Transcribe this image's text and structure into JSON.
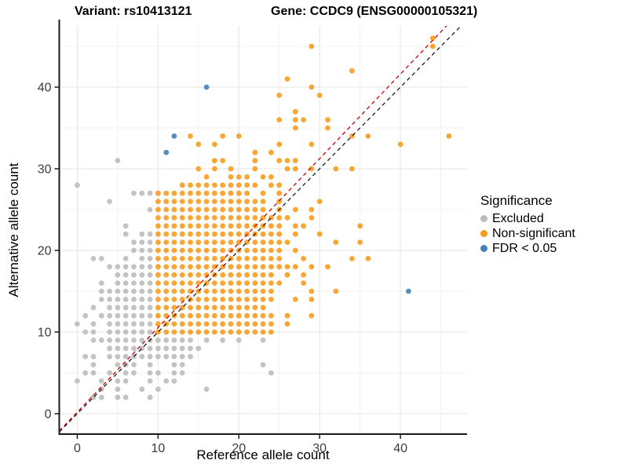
{
  "header": {
    "title_left": "Variant: rs10413121",
    "title_right": "Gene: CCDC9 (ENSG00000105321)"
  },
  "chart_data": {
    "type": "scatter",
    "xlabel": "Reference allele count",
    "ylabel": "Alternative allele count",
    "xlim": [
      -2.23,
      48.25
    ],
    "ylim": [
      -2.5,
      47.5
    ],
    "x_ticks": [
      0,
      10,
      20,
      30,
      40
    ],
    "y_ticks": [
      0,
      10,
      20,
      30,
      40
    ],
    "x_minor_ticks": [
      5,
      15,
      25,
      35,
      45
    ],
    "y_minor_ticks": [
      5,
      15,
      25,
      35,
      45
    ],
    "grid": {
      "on": true,
      "major_color": "#e4e4e4",
      "minor_color": "#f2f2f2"
    },
    "axis_color": "#1a1a1a",
    "tick_label_color": "#3c3c3c",
    "legend_title": "Significance",
    "legend_position": "right",
    "lines": [
      {
        "name": "identity-line",
        "slope": 1.0,
        "intercept": 0,
        "color": "#1a1a1a",
        "dash": "5,4"
      },
      {
        "name": "expected-ratio-line",
        "slope": 1.035,
        "intercept": 0.2,
        "color": "#cc0000",
        "dash": "5,4"
      }
    ],
    "point_radius": 3.4,
    "series": [
      {
        "name": "Excluded",
        "color": "#bcbcbc",
        "points": [
          [
            2,
            2
          ],
          [
            3,
            2
          ],
          [
            5,
            2
          ],
          [
            6,
            2
          ],
          [
            9,
            2
          ],
          [
            3,
            3
          ],
          [
            5,
            3
          ],
          [
            8,
            3
          ],
          [
            10,
            3
          ],
          [
            16,
            3
          ],
          [
            0,
            4
          ],
          [
            3,
            4
          ],
          [
            5,
            4
          ],
          [
            6,
            4
          ],
          [
            9,
            4
          ],
          [
            11,
            4
          ],
          [
            12,
            4
          ],
          [
            1,
            5
          ],
          [
            2,
            5
          ],
          [
            4,
            5
          ],
          [
            6,
            5
          ],
          [
            7,
            5
          ],
          [
            9,
            5
          ],
          [
            10,
            5
          ],
          [
            12,
            5
          ],
          [
            13,
            5
          ],
          [
            24,
            5
          ],
          [
            2,
            6
          ],
          [
            5,
            6
          ],
          [
            6,
            6
          ],
          [
            7,
            6
          ],
          [
            9,
            6
          ],
          [
            12,
            6
          ],
          [
            13,
            6
          ],
          [
            23,
            6
          ],
          [
            1,
            7
          ],
          [
            2,
            7
          ],
          [
            4,
            7
          ],
          [
            5,
            7
          ],
          [
            6,
            7
          ],
          [
            7,
            7
          ],
          [
            8,
            7
          ],
          [
            9,
            7
          ],
          [
            10,
            7
          ],
          [
            11,
            7
          ],
          [
            12,
            7
          ],
          [
            13,
            7
          ],
          [
            14,
            7
          ],
          [
            4,
            8
          ],
          [
            5,
            8
          ],
          [
            6,
            8
          ],
          [
            7,
            8
          ],
          [
            8,
            8
          ],
          [
            9,
            8
          ],
          [
            10,
            8
          ],
          [
            11,
            8
          ],
          [
            12,
            8
          ],
          [
            13,
            8
          ],
          [
            14,
            8
          ],
          [
            15,
            8
          ],
          [
            2,
            9
          ],
          [
            3,
            9
          ],
          [
            4,
            9
          ],
          [
            5,
            9
          ],
          [
            6,
            9
          ],
          [
            7,
            9
          ],
          [
            8,
            9
          ],
          [
            9,
            9
          ],
          [
            10,
            9
          ],
          [
            11,
            9
          ],
          [
            12,
            9
          ],
          [
            13,
            9
          ],
          [
            14,
            9
          ],
          [
            16,
            9
          ],
          [
            18,
            9
          ],
          [
            20,
            9
          ],
          [
            23,
            9
          ],
          [
            1,
            10
          ],
          [
            2,
            10
          ],
          [
            4,
            10
          ],
          [
            5,
            10
          ],
          [
            6,
            10
          ],
          [
            7,
            10
          ],
          [
            8,
            10
          ],
          [
            9,
            10
          ],
          [
            0,
            11
          ],
          [
            2,
            11
          ],
          [
            4,
            11
          ],
          [
            5,
            11
          ],
          [
            6,
            11
          ],
          [
            7,
            11
          ],
          [
            8,
            11
          ],
          [
            9,
            11
          ],
          [
            1,
            12
          ],
          [
            3,
            12
          ],
          [
            4,
            12
          ],
          [
            5,
            12
          ],
          [
            6,
            12
          ],
          [
            7,
            12
          ],
          [
            8,
            12
          ],
          [
            9,
            12
          ],
          [
            2,
            13
          ],
          [
            4,
            13
          ],
          [
            5,
            13
          ],
          [
            6,
            13
          ],
          [
            7,
            13
          ],
          [
            8,
            13
          ],
          [
            9,
            13
          ],
          [
            3,
            14
          ],
          [
            4,
            14
          ],
          [
            5,
            14
          ],
          [
            6,
            14
          ],
          [
            7,
            14
          ],
          [
            8,
            14
          ],
          [
            9,
            14
          ],
          [
            3,
            15
          ],
          [
            4,
            15
          ],
          [
            5,
            15
          ],
          [
            6,
            15
          ],
          [
            7,
            15
          ],
          [
            8,
            15
          ],
          [
            9,
            15
          ],
          [
            3,
            16
          ],
          [
            5,
            16
          ],
          [
            6,
            16
          ],
          [
            7,
            16
          ],
          [
            8,
            16
          ],
          [
            9,
            16
          ],
          [
            5,
            17
          ],
          [
            6,
            17
          ],
          [
            7,
            17
          ],
          [
            8,
            17
          ],
          [
            9,
            17
          ],
          [
            4,
            18
          ],
          [
            5,
            18
          ],
          [
            6,
            18
          ],
          [
            7,
            18
          ],
          [
            8,
            18
          ],
          [
            9,
            18
          ],
          [
            2,
            19
          ],
          [
            3,
            19
          ],
          [
            6,
            19
          ],
          [
            8,
            19
          ],
          [
            9,
            19
          ],
          [
            7,
            20
          ],
          [
            8,
            20
          ],
          [
            9,
            20
          ],
          [
            7,
            21
          ],
          [
            8,
            21
          ],
          [
            9,
            21
          ],
          [
            6,
            22
          ],
          [
            8,
            22
          ],
          [
            9,
            22
          ],
          [
            6,
            23
          ],
          [
            9,
            25
          ],
          [
            4,
            26
          ],
          [
            7,
            27
          ],
          [
            8,
            27
          ],
          [
            9,
            27
          ],
          [
            0,
            28
          ],
          [
            5,
            31
          ]
        ]
      },
      {
        "name": "Non-significant",
        "color": "#f89c1e",
        "row_runs": [
          {
            "y": 10,
            "from": 10,
            "to": 24
          },
          {
            "y": 11,
            "from": 10,
            "to": 24
          },
          {
            "y": 12,
            "from": 10,
            "to": 24
          },
          {
            "y": 13,
            "from": 10,
            "to": 23
          },
          {
            "y": 14,
            "from": 10,
            "to": 24
          },
          {
            "y": 15,
            "from": 10,
            "to": 24
          },
          {
            "y": 16,
            "from": 10,
            "to": 25
          },
          {
            "y": 17,
            "from": 10,
            "to": 24
          },
          {
            "y": 18,
            "from": 10,
            "to": 27
          },
          {
            "y": 19,
            "from": 10,
            "to": 25
          },
          {
            "y": 20,
            "from": 10,
            "to": 25
          },
          {
            "y": 21,
            "from": 10,
            "to": 26
          },
          {
            "y": 22,
            "from": 10,
            "to": 25
          },
          {
            "y": 23,
            "from": 10,
            "to": 25
          },
          {
            "y": 24,
            "from": 10,
            "to": 24
          },
          {
            "y": 25,
            "from": 10,
            "to": 23
          },
          {
            "y": 26,
            "from": 10,
            "to": 23
          },
          {
            "y": 27,
            "from": 10,
            "to": 21
          },
          {
            "y": 28,
            "from": 13,
            "to": 22
          }
        ],
        "points": [
          [
            26,
            11
          ],
          [
            26,
            12
          ],
          [
            29,
            12
          ],
          [
            27,
            14
          ],
          [
            29,
            14
          ],
          [
            29,
            15
          ],
          [
            32,
            15
          ],
          [
            28,
            16
          ],
          [
            26,
            17
          ],
          [
            28,
            17
          ],
          [
            29,
            18
          ],
          [
            31,
            18
          ],
          [
            28,
            19
          ],
          [
            34,
            19
          ],
          [
            36,
            19
          ],
          [
            27,
            20
          ],
          [
            32,
            21
          ],
          [
            35,
            21
          ],
          [
            27,
            22
          ],
          [
            30,
            22
          ],
          [
            27,
            23
          ],
          [
            28,
            23
          ],
          [
            35,
            23
          ],
          [
            25,
            24
          ],
          [
            26,
            24
          ],
          [
            29,
            24
          ],
          [
            25,
            25
          ],
          [
            27,
            25
          ],
          [
            29,
            25
          ],
          [
            25,
            26
          ],
          [
            30,
            26
          ],
          [
            23,
            27
          ],
          [
            25,
            27
          ],
          [
            24,
            28
          ],
          [
            25,
            28
          ],
          [
            16,
            29
          ],
          [
            19,
            29
          ],
          [
            20,
            29
          ],
          [
            21,
            29
          ],
          [
            23,
            29
          ],
          [
            24,
            29
          ],
          [
            15,
            30
          ],
          [
            17,
            30
          ],
          [
            19,
            30
          ],
          [
            22,
            30
          ],
          [
            26,
            30
          ],
          [
            27,
            30
          ],
          [
            29,
            30
          ],
          [
            32,
            30
          ],
          [
            34,
            30
          ],
          [
            17,
            31
          ],
          [
            18,
            31
          ],
          [
            22,
            31
          ],
          [
            25,
            31
          ],
          [
            26,
            31
          ],
          [
            27,
            31
          ],
          [
            22,
            32
          ],
          [
            24,
            32
          ],
          [
            15,
            33
          ],
          [
            17,
            33
          ],
          [
            25,
            33
          ],
          [
            29,
            33
          ],
          [
            40,
            33
          ],
          [
            14,
            34
          ],
          [
            18,
            34
          ],
          [
            20,
            34
          ],
          [
            34,
            34
          ],
          [
            36,
            34
          ],
          [
            46,
            34
          ],
          [
            27,
            35
          ],
          [
            31,
            35
          ],
          [
            25,
            36
          ],
          [
            27,
            36
          ],
          [
            28,
            36
          ],
          [
            31,
            36
          ],
          [
            27,
            37
          ],
          [
            25,
            39
          ],
          [
            30,
            39
          ],
          [
            29,
            40
          ],
          [
            26,
            41
          ],
          [
            34,
            42
          ],
          [
            29,
            45
          ],
          [
            44,
            45
          ],
          [
            44,
            46
          ]
        ]
      },
      {
        "name": "FDR < 0.05",
        "color": "#4682b4",
        "points": [
          [
            11,
            32
          ],
          [
            12,
            34
          ],
          [
            16,
            40
          ],
          [
            41,
            15
          ]
        ]
      }
    ]
  }
}
